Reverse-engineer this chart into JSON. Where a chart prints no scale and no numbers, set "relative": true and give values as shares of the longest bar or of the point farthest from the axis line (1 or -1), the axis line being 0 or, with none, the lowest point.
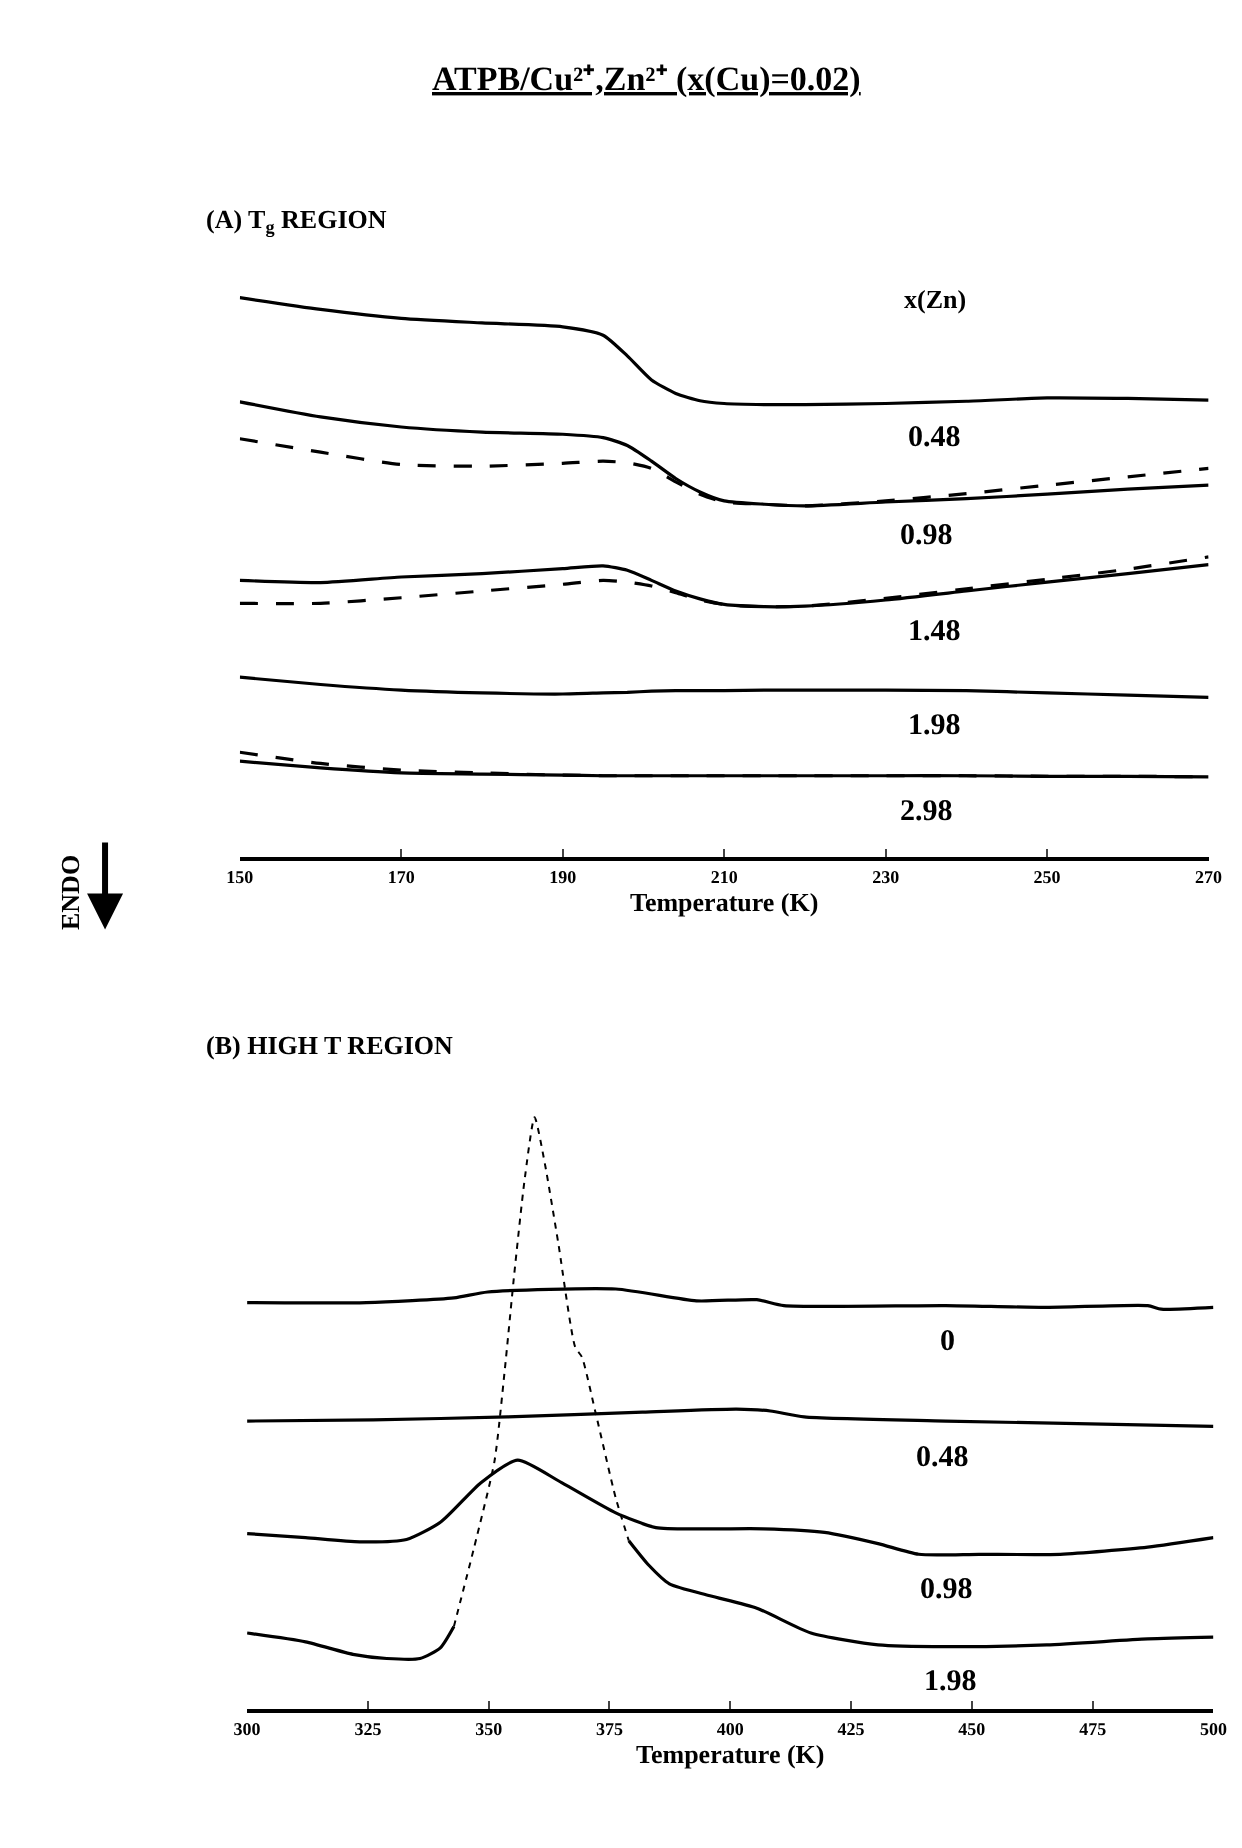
{
  "chart_data": [
    {
      "type": "line",
      "relative": true,
      "title": "ATPB/Cu²⁺,Zn²⁺ (x(Cu)=0.02)",
      "subtitle": "(A) T$_{g}$ REGION",
      "xlabel": "Temperature (K)",
      "xlim": [
        150,
        270
      ],
      "xticks": [
        150,
        170,
        190,
        210,
        230,
        250,
        270
      ],
      "x": [
        150,
        160,
        170,
        180,
        190,
        195,
        198,
        201,
        204,
        207,
        210,
        215,
        220,
        230,
        240,
        250,
        260,
        270
      ],
      "series": [
        {
          "color": "#000000",
          "line_style": "solid",
          "values": [
            1.0,
            0.979,
            0.963,
            0.955,
            0.948,
            0.933,
            0.896,
            0.853,
            0.829,
            0.816,
            0.811,
            0.809,
            0.809,
            0.811,
            0.815,
            0.821,
            0.82,
            0.817
          ]
        },
        {
          "color": "#000000",
          "line_style": "solid",
          "values": [
            0.814,
            0.787,
            0.769,
            0.76,
            0.756,
            0.75,
            0.736,
            0.708,
            0.677,
            0.653,
            0.637,
            0.631,
            0.628,
            0.635,
            0.641,
            0.649,
            0.658,
            0.665
          ]
        },
        {
          "color": "#000000",
          "line_style": "dashed",
          "values": [
            0.748,
            0.724,
            0.702,
            0.699,
            0.704,
            0.708,
            0.705,
            0.695,
            0.671,
            0.649,
            0.635,
            0.631,
            0.628,
            0.637,
            0.65,
            0.665,
            0.68,
            0.695
          ]
        },
        {
          "color": "#000000",
          "line_style": "solid",
          "values": [
            0.495,
            0.491,
            0.501,
            0.507,
            0.516,
            0.521,
            0.513,
            0.495,
            0.476,
            0.462,
            0.452,
            0.448,
            0.449,
            0.46,
            0.476,
            0.492,
            0.507,
            0.523
          ]
        },
        {
          "color": "#000000",
          "line_style": "dashed",
          "values": [
            0.454,
            0.454,
            0.464,
            0.476,
            0.488,
            0.495,
            0.492,
            0.485,
            0.473,
            0.46,
            0.452,
            0.448,
            0.449,
            0.463,
            0.48,
            0.497,
            0.515,
            0.537
          ]
        },
        {
          "color": "#000000",
          "line_style": "solid",
          "values": [
            0.322,
            0.309,
            0.299,
            0.294,
            0.292,
            0.294,
            0.295,
            0.297,
            0.298,
            0.298,
            0.298,
            0.299,
            0.299,
            0.299,
            0.298,
            0.294,
            0.29,
            0.286
          ]
        },
        {
          "color": "#000000",
          "line_style": "solid",
          "values": [
            0.172,
            0.16,
            0.151,
            0.149,
            0.147,
            0.146,
            0.146,
            0.146,
            0.146,
            0.146,
            0.146,
            0.146,
            0.146,
            0.146,
            0.146,
            0.145,
            0.145,
            0.144
          ]
        },
        {
          "color": "#000000",
          "line_style": "dashed",
          "values": [
            0.188,
            0.168,
            0.156,
            0.151,
            0.147,
            0.146,
            0.146,
            0.146,
            0.146,
            0.146,
            0.146,
            0.146,
            0.146,
            0.146,
            0.146,
            0.145,
            0.145,
            0.144
          ]
        }
      ],
      "annotations": [
        "x(Zn)",
        "ENDO",
        {
          "text": "0.48",
          "x": 236,
          "y": 0.813
        },
        {
          "text": "0.98",
          "x": 235,
          "y": 0.638
        },
        {
          "text": "1.48",
          "x": 236,
          "y": 0.468
        },
        {
          "text": "1.98",
          "x": 236,
          "y": 0.298
        },
        {
          "text": "2.98",
          "x": 235,
          "y": 0.146
        }
      ]
    },
    {
      "type": "line",
      "relative": true,
      "subtitle": "(B) HIGH T REGION",
      "xlabel": "Temperature (K)",
      "xlim": [
        300,
        500
      ],
      "xticks": [
        300,
        325,
        350,
        375,
        400,
        425,
        450,
        475,
        500
      ],
      "series": [
        {
          "color": "#000000",
          "line_style": "solid",
          "x": [
            300,
            324.7,
            342.8,
            349.8,
            376.3,
            393.0,
            405.5,
            411.1,
            444.6,
            465.5,
            486.4,
            489.2,
            500
          ],
          "values": [
            0.687,
            0.687,
            0.695,
            0.705,
            0.71,
            0.69,
            0.692,
            0.682,
            0.682,
            0.679,
            0.682,
            0.676,
            0.679
          ]
        },
        {
          "color": "#000000",
          "line_style": "solid",
          "x": [
            300,
            326.1,
            353.9,
            381.8,
            401.3,
            408.3,
            415.3,
            444.6,
            500
          ],
          "values": [
            0.487,
            0.489,
            0.494,
            0.502,
            0.507,
            0.504,
            0.494,
            0.487,
            0.478
          ]
        },
        {
          "color": "#000000",
          "line_style": "solid",
          "x": [
            300,
            312.1,
            323.3,
            333.0,
            340.0,
            348.4,
            356.0,
            365.1,
            376.3,
            384.6,
            395.8,
            406.9,
            419.5,
            430.6,
            439.0,
            451.5,
            468.3,
            486.4,
            500
          ],
          "values": [
            0.297,
            0.29,
            0.283,
            0.287,
            0.316,
            0.383,
            0.421,
            0.383,
            0.332,
            0.307,
            0.305,
            0.305,
            0.299,
            0.28,
            0.262,
            0.262,
            0.262,
            0.274,
            0.29
          ]
        },
        {
          "color": "#000000",
          "line_style": "solid",
          "x": [
            300,
            312.1,
            321.9,
            328.9,
            335.8,
            340.0,
            342.8,
            359.5,
            379.0,
            383.2,
            387.4,
            395.8,
            405.5,
            416.7,
            430.6,
            444.6,
            465.5,
            486.4,
            500
          ],
          "values": [
            0.129,
            0.114,
            0.093,
            0.086,
            0.086,
            0.104,
            0.14,
            null,
            0.285,
            0.243,
            0.212,
            0.192,
            0.171,
            0.129,
            0.109,
            0.106,
            0.109,
            0.119,
            0.122
          ]
        },
        {
          "color": "#000000",
          "line_style": "dotted",
          "x": [
            342.8,
            347.0,
            351.2,
            353.3,
            355.3,
            357.4,
            359.5,
            361.6,
            364.4,
            367.9,
            369.3,
            372.1,
            376.3,
            379.0
          ],
          "values": [
            0.14,
            0.274,
            0.419,
            0.571,
            0.736,
            0.892,
            1.0,
            0.923,
            0.788,
            0.612,
            0.595,
            0.502,
            0.357,
            0.285
          ]
        }
      ],
      "annotations": [
        {
          "text": "0",
          "x": 445,
          "y": 0.682
        },
        {
          "text": "0.48",
          "x": 444,
          "y": 0.487
        },
        {
          "text": "0.98",
          "x": 444.5,
          "y": 0.262
        },
        {
          "text": "1.98",
          "x": 445.5,
          "y": 0.106
        }
      ]
    }
  ]
}
